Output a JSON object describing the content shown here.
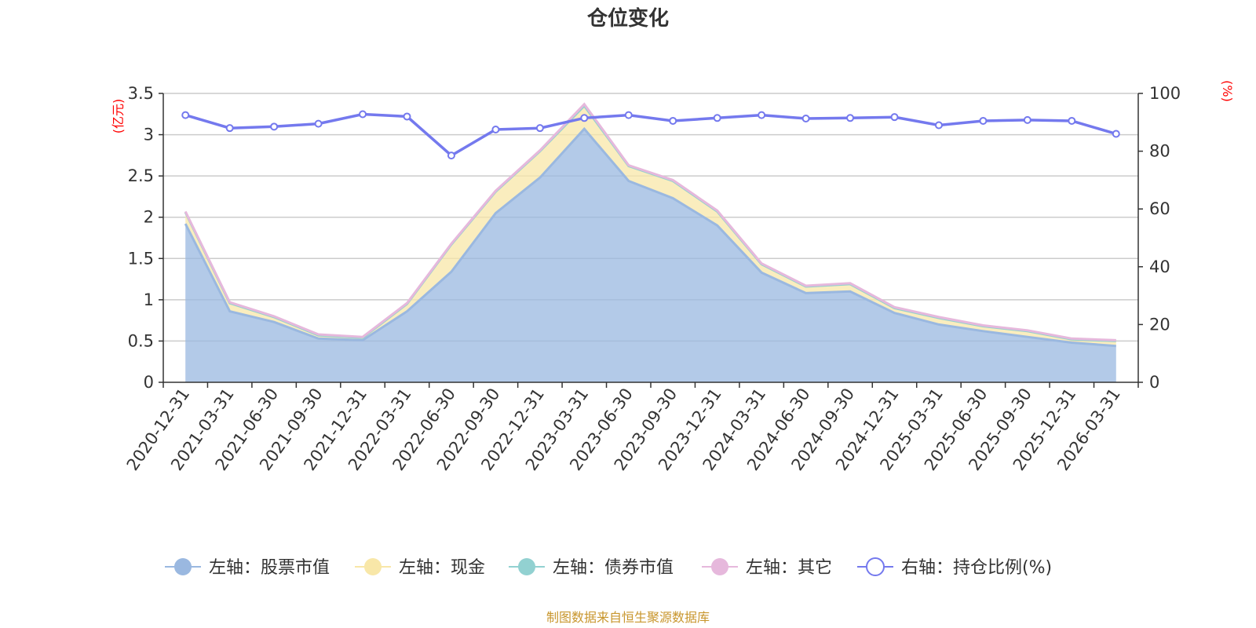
{
  "chart_data": {
    "type": "area",
    "title": "仓位变化",
    "left_axis": {
      "unit_label": "(亿元)",
      "ylim": [
        0,
        3.5
      ],
      "ticks": [
        "0",
        "0.5",
        "1",
        "1.5",
        "2",
        "2.5",
        "3",
        "3.5"
      ]
    },
    "right_axis": {
      "unit_label": "(%)",
      "ylim": [
        0,
        100
      ],
      "ticks": [
        "0",
        "20",
        "40",
        "60",
        "80",
        "100"
      ]
    },
    "categories": [
      "2020-12-31",
      "2021-03-31",
      "2021-06-30",
      "2021-09-30",
      "2021-12-31",
      "2022-03-31",
      "2022-06-30",
      "2022-09-30",
      "2022-12-31",
      "2023-03-31",
      "2023-06-30",
      "2023-09-30",
      "2023-12-31",
      "2024-03-31",
      "2024-06-30",
      "2024-09-30",
      "2024-12-31",
      "2025-03-31",
      "2025-06-30",
      "2025-09-30",
      "2025-12-31",
      "2026-03-31"
    ],
    "series": [
      {
        "name": "左轴：股票市值",
        "axis": "left",
        "stack": "total",
        "color": "#9ab8e0",
        "values": [
          1.92,
          0.86,
          0.73,
          0.53,
          0.51,
          0.86,
          1.34,
          2.05,
          2.48,
          3.07,
          2.44,
          2.23,
          1.9,
          1.33,
          1.08,
          1.1,
          0.84,
          0.7,
          0.62,
          0.55,
          0.48,
          0.44
        ]
      },
      {
        "name": "左轴：现金",
        "axis": "left",
        "stack": "total",
        "color": "#f8e7a8",
        "values": [
          0.14,
          0.1,
          0.06,
          0.04,
          0.03,
          0.09,
          0.33,
          0.26,
          0.32,
          0.28,
          0.18,
          0.21,
          0.17,
          0.1,
          0.08,
          0.09,
          0.06,
          0.08,
          0.06,
          0.07,
          0.04,
          0.06
        ]
      },
      {
        "name": "左轴：债券市值",
        "axis": "left",
        "stack": "total",
        "color": "#92d1d1",
        "values": [
          0,
          0,
          0,
          0,
          0,
          0,
          0,
          0,
          0,
          0,
          0,
          0,
          0,
          0,
          0,
          0,
          0,
          0,
          0,
          0,
          0,
          0
        ]
      },
      {
        "name": "左轴：其它",
        "axis": "left",
        "stack": "total",
        "color": "#e6b8dc",
        "values": [
          0.01,
          0.01,
          0.01,
          0.01,
          0.01,
          0.01,
          0.01,
          0.01,
          0.01,
          0.02,
          0.01,
          0.01,
          0.01,
          0.01,
          0.01,
          0.01,
          0.01,
          0.01,
          0.01,
          0.01,
          0.01,
          0.01
        ]
      },
      {
        "name": "右轴：持仓比例(%)",
        "axis": "right",
        "type": "line",
        "color": "#7479ee",
        "values": [
          92.5,
          88.0,
          88.5,
          89.5,
          92.8,
          92.0,
          78.5,
          87.5,
          88.0,
          91.5,
          92.5,
          90.5,
          91.5,
          92.5,
          91.3,
          91.5,
          91.8,
          89.0,
          90.5,
          90.8,
          90.5,
          86.0
        ]
      }
    ],
    "legend_position": "bottom",
    "grid": true,
    "source_note": "制图数据来自恒生聚源数据库"
  },
  "colors": {
    "axis": "#333333",
    "grid": "#cccccc",
    "unit": "#ff0000",
    "source": "#c8962d"
  }
}
